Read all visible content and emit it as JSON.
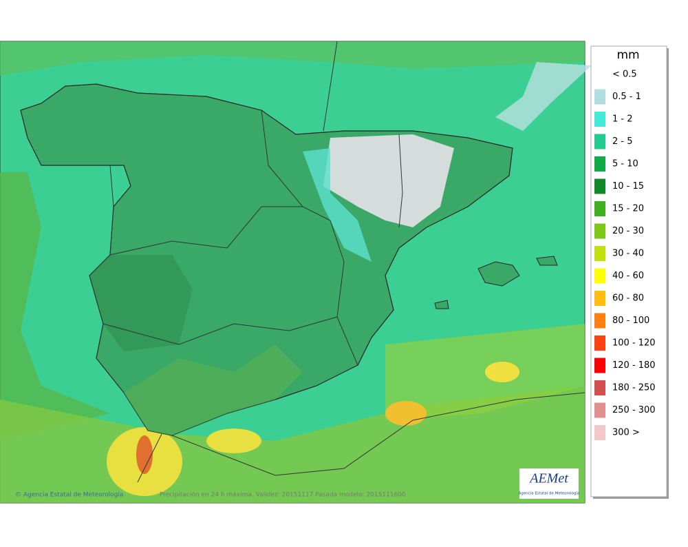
{
  "legend": {
    "unit": "mm",
    "items": [
      {
        "label": "< 0.5",
        "color": "#ffffff"
      },
      {
        "label": "0.5 - 1",
        "color": "#b0dde0"
      },
      {
        "label": "1 - 2",
        "color": "#40ecd8"
      },
      {
        "label": "2 - 5",
        "color": "#20cc90"
      },
      {
        "label": "5 - 10",
        "color": "#10aa48"
      },
      {
        "label": "10 - 15",
        "color": "#108a28"
      },
      {
        "label": "15 - 20",
        "color": "#40b020"
      },
      {
        "label": "20 - 30",
        "color": "#80c818"
      },
      {
        "label": "30 - 40",
        "color": "#c0e010"
      },
      {
        "label": "40 - 60",
        "color": "#ffff00"
      },
      {
        "label": "60 - 80",
        "color": "#ffbe10"
      },
      {
        "label": "80 - 100",
        "color": "#ff8010"
      },
      {
        "label": "100 - 120",
        "color": "#ff4010"
      },
      {
        "label": "120 - 180",
        "color": "#ff0000"
      },
      {
        "label": "180 - 250",
        "color": "#d05050"
      },
      {
        "label": "250 - 300",
        "color": "#e09090"
      },
      {
        "label": "300 >",
        "color": "#f2c8c8"
      }
    ]
  },
  "footer": {
    "credit": "© Agencia Estatal de Meteorología",
    "info": "Precipitación en 24 h máxima. Validez: 20151117 Pasada modelo: 2015111600"
  },
  "logo": {
    "name": "AEMet",
    "subtitle": "Agencia Estatal de Meteorología"
  }
}
